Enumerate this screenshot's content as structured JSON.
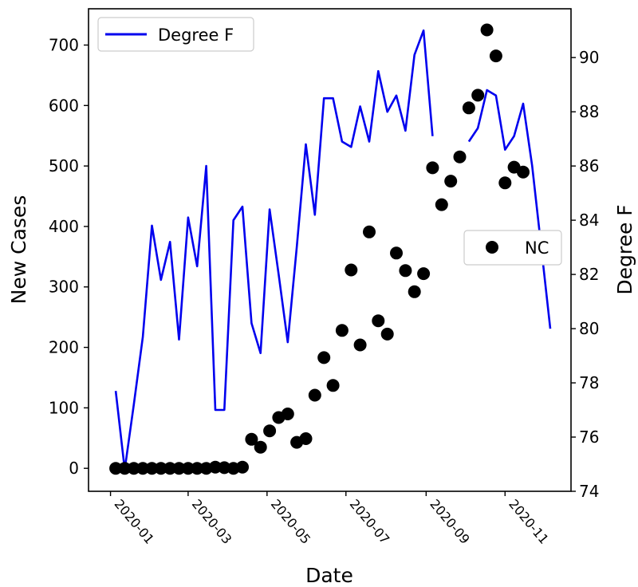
{
  "chart_data": {
    "type": "line+scatter",
    "title": "",
    "xlabel": "Date",
    "ylabel_left": "New Cases",
    "ylabel_right": "Degree F",
    "x_ticks": [
      "2020-01",
      "2020-03",
      "2020-05",
      "2020-07",
      "2020-09",
      "2020-11"
    ],
    "y_left_ticks": [
      0,
      100,
      200,
      300,
      400,
      500,
      600,
      700
    ],
    "y_right_ticks": [
      74,
      76,
      78,
      80,
      82,
      84,
      86,
      88,
      90
    ],
    "ylim_left": [
      -38,
      760
    ],
    "ylim_right": [
      74,
      91.8
    ],
    "grid": false,
    "series": [
      {
        "name": "Degree F",
        "kind": "line",
        "axis": "right",
        "color": "#0000ee",
        "segments": [
          [
            [
              "2020-01-05",
              77.7
            ],
            [
              "2020-01-12",
              74.8
            ],
            [
              "2020-01-19",
              77.2
            ],
            [
              "2020-01-26",
              79.7
            ],
            [
              "2020-02-02",
              83.8
            ],
            [
              "2020-02-09",
              81.8
            ],
            [
              "2020-02-16",
              83.2
            ],
            [
              "2020-02-23",
              79.6
            ],
            [
              "2020-03-01",
              84.1
            ],
            [
              "2020-03-08",
              82.3
            ],
            [
              "2020-03-15",
              86.0
            ],
            [
              "2020-03-22",
              77.0
            ],
            [
              "2020-03-29",
              77.0
            ],
            [
              "2020-04-05",
              84.0
            ],
            [
              "2020-04-12",
              84.5
            ],
            [
              "2020-04-19",
              80.2
            ],
            [
              "2020-04-26",
              79.1
            ],
            [
              "2020-05-03",
              84.4
            ],
            [
              "2020-05-10",
              82.0
            ],
            [
              "2020-05-17",
              79.5
            ],
            [
              "2020-05-24",
              83.0
            ],
            [
              "2020-05-31",
              86.8
            ],
            [
              "2020-06-07",
              84.2
            ],
            [
              "2020-06-14",
              88.5
            ],
            [
              "2020-06-21",
              88.5
            ],
            [
              "2020-06-28",
              86.9
            ],
            [
              "2020-07-05",
              86.7
            ],
            [
              "2020-07-12",
              88.2
            ],
            [
              "2020-07-19",
              86.9
            ],
            [
              "2020-07-26",
              89.5
            ],
            [
              "2020-08-02",
              88.0
            ],
            [
              "2020-08-09",
              88.6
            ],
            [
              "2020-08-16",
              87.3
            ],
            [
              "2020-08-23",
              90.1
            ],
            [
              "2020-08-30",
              91.0
            ],
            [
              "2020-09-06",
              87.1
            ]
          ],
          [
            [
              "2020-10-04",
              86.9
            ],
            [
              "2020-10-11",
              87.4
            ],
            [
              "2020-10-18",
              88.8
            ],
            [
              "2020-10-25",
              88.6
            ],
            [
              "2020-11-01",
              86.6
            ],
            [
              "2020-11-08",
              87.1
            ],
            [
              "2020-11-15",
              88.3
            ],
            [
              "2020-11-22",
              86.0
            ],
            [
              "2020-11-29",
              83.0
            ],
            [
              "2020-12-06",
              80.0
            ]
          ]
        ]
      },
      {
        "name": "NC",
        "kind": "scatter",
        "axis": "left",
        "color": "#000000",
        "points": [
          [
            "2020-01-05",
            0
          ],
          [
            "2020-01-12",
            0
          ],
          [
            "2020-01-19",
            0
          ],
          [
            "2020-01-26",
            0
          ],
          [
            "2020-02-02",
            0
          ],
          [
            "2020-02-09",
            0
          ],
          [
            "2020-02-16",
            0
          ],
          [
            "2020-02-23",
            0
          ],
          [
            "2020-03-01",
            0
          ],
          [
            "2020-03-08",
            0
          ],
          [
            "2020-03-15",
            0
          ],
          [
            "2020-03-22",
            2
          ],
          [
            "2020-03-29",
            1
          ],
          [
            "2020-04-05",
            0
          ],
          [
            "2020-04-12",
            2
          ],
          [
            "2020-04-19",
            48
          ],
          [
            "2020-04-26",
            35
          ],
          [
            "2020-05-03",
            62
          ],
          [
            "2020-05-10",
            84
          ],
          [
            "2020-05-17",
            90
          ],
          [
            "2020-05-24",
            43
          ],
          [
            "2020-05-31",
            49
          ],
          [
            "2020-06-07",
            121
          ],
          [
            "2020-06-14",
            183
          ],
          [
            "2020-06-21",
            137
          ],
          [
            "2020-06-28",
            228
          ],
          [
            "2020-07-05",
            328
          ],
          [
            "2020-07-12",
            204
          ],
          [
            "2020-07-19",
            391
          ],
          [
            "2020-07-26",
            244
          ],
          [
            "2020-08-02",
            222
          ],
          [
            "2020-08-09",
            356
          ],
          [
            "2020-08-16",
            327
          ],
          [
            "2020-08-23",
            292
          ],
          [
            "2020-08-30",
            322
          ],
          [
            "2020-09-06",
            497
          ],
          [
            "2020-09-13",
            436
          ],
          [
            "2020-09-20",
            475
          ],
          [
            "2020-09-27",
            515
          ],
          [
            "2020-10-04",
            596
          ],
          [
            "2020-10-11",
            617
          ],
          [
            "2020-10-18",
            725
          ],
          [
            "2020-10-25",
            682
          ],
          [
            "2020-11-01",
            472
          ],
          [
            "2020-11-08",
            498
          ],
          [
            "2020-11-15",
            490
          ]
        ]
      }
    ],
    "legends": [
      {
        "series": "Degree F",
        "label": "Degree F",
        "placement": "upper-left"
      },
      {
        "series": "NC",
        "label": "NC",
        "placement": "center-right"
      }
    ]
  }
}
